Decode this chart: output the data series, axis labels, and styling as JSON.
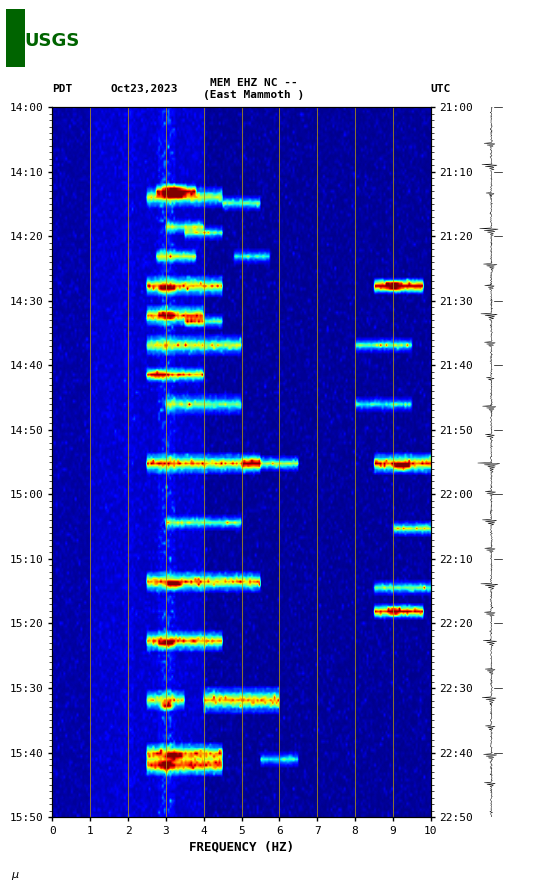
{
  "title_line1": "MEM EHZ NC --",
  "title_line2": "(East Mammoth )",
  "date_label": "Oct23,2023",
  "pdt_label": "PDT",
  "utc_label": "UTC",
  "left_times": [
    "14:00",
    "14:10",
    "14:20",
    "14:30",
    "14:40",
    "14:50",
    "15:00",
    "15:10",
    "15:20",
    "15:30",
    "15:40",
    "15:50"
  ],
  "right_times": [
    "21:00",
    "21:10",
    "21:20",
    "21:30",
    "21:40",
    "21:50",
    "22:00",
    "22:10",
    "22:20",
    "22:30",
    "22:40",
    "22:50"
  ],
  "freq_label": "FREQUENCY (HZ)",
  "freq_ticks": [
    0,
    1,
    2,
    3,
    4,
    5,
    6,
    7,
    8,
    9,
    10
  ],
  "xlim": [
    0,
    10
  ],
  "background_color": "#ffffff",
  "spectrogram_bg": "#000080",
  "vertical_line_color": "#b8960c",
  "vertical_line_positions": [
    1,
    2,
    3,
    4,
    5,
    6,
    7,
    8,
    9
  ],
  "colormap": "jet",
  "fig_width": 5.52,
  "fig_height": 8.93,
  "usgs_green": "#006400"
}
